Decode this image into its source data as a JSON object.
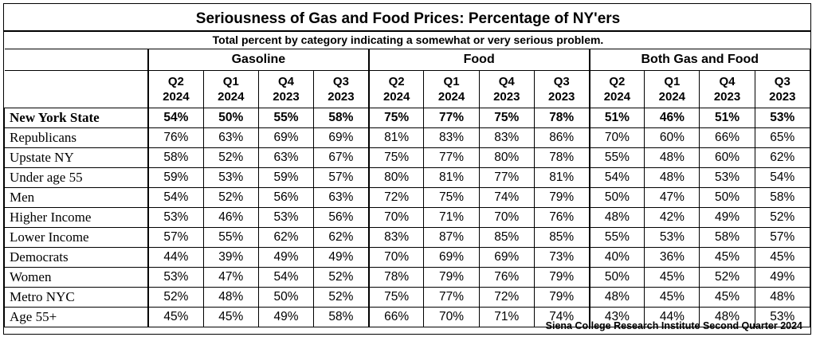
{
  "title": "Seriousness of Gas and Food Prices:  Percentage of NY'ers",
  "subtitle": "Total percent by category indicating a somewhat or very serious problem.",
  "source": "Siena College Research Institute Second Quarter 2024",
  "chart_data": {
    "type": "table",
    "title": "Seriousness of Gas and Food Prices:  Percentage of NY'ers",
    "subtitle": "Total percent by category indicating a somewhat or very serious problem.",
    "groups": [
      {
        "name": "Gasoline",
        "periods": [
          [
            "Q2",
            "2024"
          ],
          [
            "Q1",
            "2024"
          ],
          [
            "Q4",
            "2023"
          ],
          [
            "Q3",
            "2023"
          ]
        ]
      },
      {
        "name": "Food",
        "periods": [
          [
            "Q2",
            "2024"
          ],
          [
            "Q1",
            "2024"
          ],
          [
            "Q4",
            "2023"
          ],
          [
            "Q3",
            "2023"
          ]
        ]
      },
      {
        "name": "Both Gas and Food",
        "periods": [
          [
            "Q2",
            "2024"
          ],
          [
            "Q1",
            "2024"
          ],
          [
            "Q4",
            "2023"
          ],
          [
            "Q3",
            "2023"
          ]
        ]
      }
    ],
    "rows": [
      {
        "label": "New York State",
        "values": [
          "54%",
          "50%",
          "55%",
          "58%",
          "75%",
          "77%",
          "75%",
          "78%",
          "51%",
          "46%",
          "51%",
          "53%"
        ],
        "total": true
      },
      {
        "label": "Republicans",
        "values": [
          "76%",
          "63%",
          "69%",
          "69%",
          "81%",
          "83%",
          "83%",
          "86%",
          "70%",
          "60%",
          "66%",
          "65%"
        ]
      },
      {
        "label": "Upstate NY",
        "values": [
          "58%",
          "52%",
          "63%",
          "67%",
          "75%",
          "77%",
          "80%",
          "78%",
          "55%",
          "48%",
          "60%",
          "62%"
        ]
      },
      {
        "label": "Under age 55",
        "values": [
          "59%",
          "53%",
          "59%",
          "57%",
          "80%",
          "81%",
          "77%",
          "81%",
          "54%",
          "48%",
          "53%",
          "54%"
        ]
      },
      {
        "label": "Men",
        "values": [
          "54%",
          "52%",
          "56%",
          "63%",
          "72%",
          "75%",
          "74%",
          "79%",
          "50%",
          "47%",
          "50%",
          "58%"
        ]
      },
      {
        "label": "Higher Income",
        "values": [
          "53%",
          "46%",
          "53%",
          "56%",
          "70%",
          "71%",
          "70%",
          "76%",
          "48%",
          "42%",
          "49%",
          "52%"
        ]
      },
      {
        "label": "Lower Income",
        "values": [
          "57%",
          "55%",
          "62%",
          "62%",
          "83%",
          "87%",
          "85%",
          "85%",
          "55%",
          "53%",
          "58%",
          "57%"
        ]
      },
      {
        "label": "Democrats",
        "values": [
          "44%",
          "39%",
          "49%",
          "49%",
          "70%",
          "69%",
          "69%",
          "73%",
          "40%",
          "36%",
          "45%",
          "45%"
        ]
      },
      {
        "label": "Women",
        "values": [
          "53%",
          "47%",
          "54%",
          "52%",
          "78%",
          "79%",
          "76%",
          "79%",
          "50%",
          "45%",
          "52%",
          "49%"
        ]
      },
      {
        "label": "Metro NYC",
        "values": [
          "52%",
          "48%",
          "50%",
          "52%",
          "75%",
          "77%",
          "72%",
          "79%",
          "48%",
          "45%",
          "45%",
          "48%"
        ]
      },
      {
        "label": "Age 55+",
        "values": [
          "45%",
          "45%",
          "49%",
          "58%",
          "66%",
          "70%",
          "71%",
          "74%",
          "43%",
          "44%",
          "48%",
          "53%"
        ]
      }
    ]
  }
}
